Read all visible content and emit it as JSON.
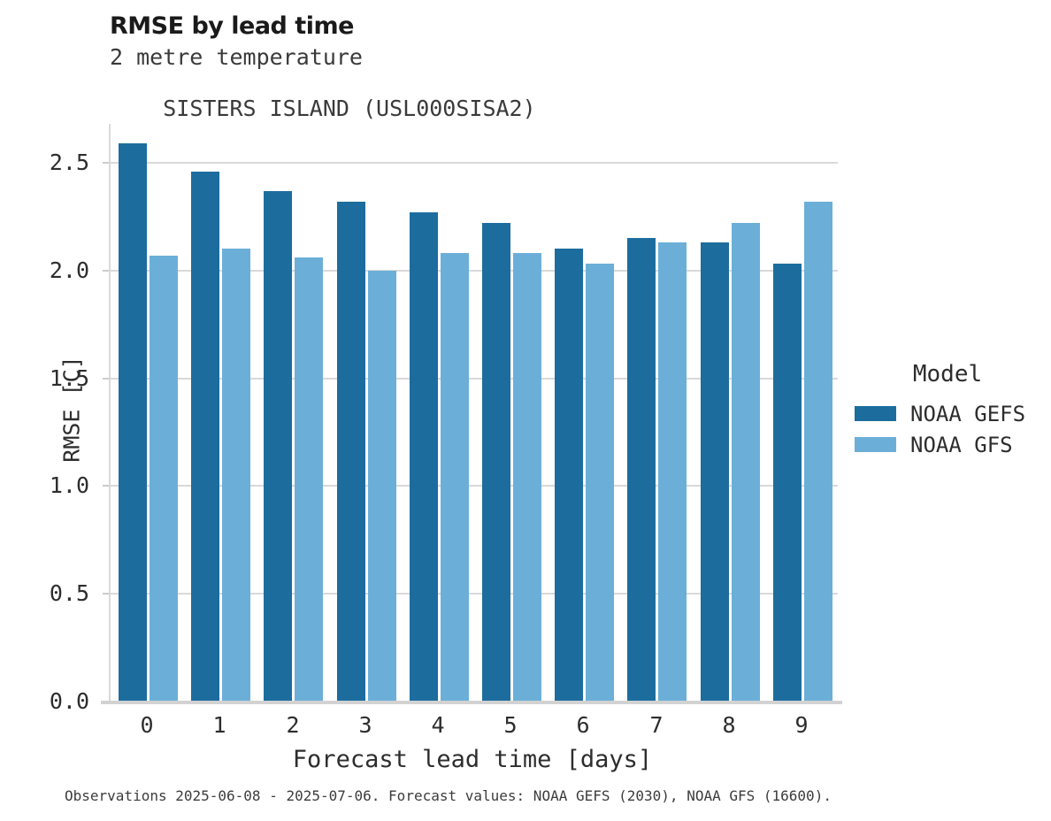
{
  "header": {
    "title": "RMSE by lead time",
    "subtitle_line1": "2 metre temperature",
    "subtitle_line2": "SISTERS ISLAND (USL000SISA2)"
  },
  "chart_data": {
    "type": "bar",
    "title": "RMSE by lead time",
    "subtitle": [
      "2 metre temperature",
      "SISTERS ISLAND (USL000SISA2)"
    ],
    "categories": [
      "0",
      "1",
      "2",
      "3",
      "4",
      "5",
      "6",
      "7",
      "8",
      "9"
    ],
    "series": [
      {
        "name": "NOAA GEFS",
        "color": "#1c6d9e",
        "values": [
          2.59,
          2.46,
          2.37,
          2.32,
          2.27,
          2.22,
          2.1,
          2.15,
          2.13,
          2.03
        ]
      },
      {
        "name": "NOAA GFS",
        "color": "#6bafd8",
        "values": [
          2.07,
          2.1,
          2.06,
          2.0,
          2.08,
          2.08,
          2.03,
          2.13,
          2.22,
          2.32
        ]
      }
    ],
    "xlabel": "Forecast lead time [days]",
    "ylabel": "RMSE [C]",
    "ylim": [
      0,
      2.68
    ],
    "yticks": [
      0.0,
      0.5,
      1.0,
      1.5,
      2.0,
      2.5
    ],
    "ytick_labels": [
      "0.0",
      "0.5",
      "1.0",
      "1.5",
      "2.0",
      "2.5"
    ],
    "grid": "horizontal-only",
    "legend_title": "Model",
    "legend_position": "right"
  },
  "legend": {
    "title": "Model",
    "entries": [
      {
        "label": "NOAA GEFS",
        "color": "#1c6d9e"
      },
      {
        "label": "NOAA GFS",
        "color": "#6bafd8"
      }
    ]
  },
  "colors": {
    "gridline": "#d9d9d9",
    "axis_line": "#d2d2d2",
    "series_dark": "#1c6d9e",
    "series_light": "#6bafd8"
  },
  "footer": {
    "caption": "Observations 2025-06-08 - 2025-07-06. Forecast values: NOAA GEFS (2030), NOAA GFS (16600)."
  }
}
